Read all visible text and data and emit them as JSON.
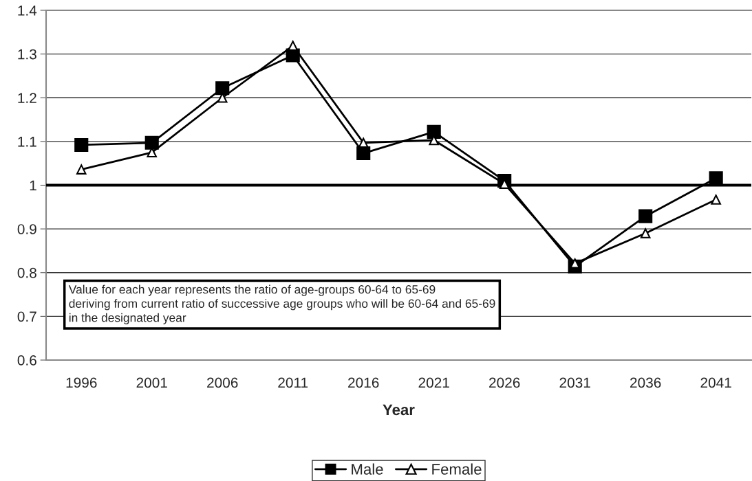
{
  "chart_data": {
    "type": "line",
    "xlabel": "Year",
    "categories": [
      "1996",
      "2001",
      "2006",
      "2011",
      "2016",
      "2021",
      "2026",
      "2031",
      "2036",
      "2041"
    ],
    "series": [
      {
        "name": "Male",
        "color": "#000000",
        "marker": "square",
        "values": [
          1.092,
          1.097,
          1.222,
          1.297,
          1.073,
          1.122,
          1.01,
          0.814,
          0.929,
          1.016
        ]
      },
      {
        "name": "Female",
        "color": "#000000",
        "marker": "triangle",
        "values": [
          1.036,
          1.075,
          1.2,
          1.319,
          1.097,
          1.103,
          1.003,
          0.821,
          0.89,
          0.967
        ]
      }
    ],
    "ylim": [
      0.6,
      1.4
    ],
    "yticks": [
      0.6,
      0.7,
      0.8,
      0.9,
      1,
      1.1,
      1.2,
      1.3,
      1.4
    ],
    "grid": "y",
    "legend": "bottom",
    "line_style": "solid",
    "ref_lines": [
      {
        "axis": "y",
        "value": 1,
        "color": "#000000"
      }
    ],
    "annotations": [
      "Value for each year represents the ratio of age-groups 60-64 to 65-69\nderiving from current ratio of successive age groups who will be 60-64 and 65-69\nin the designated year"
    ]
  }
}
